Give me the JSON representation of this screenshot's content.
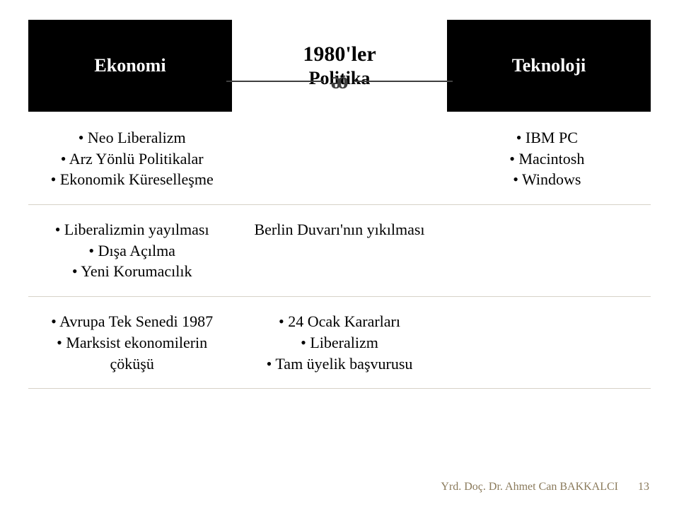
{
  "slide": {
    "decade": "1980'ler",
    "politika_label": "Politika",
    "ekonomi_label": "Ekonomi",
    "teknoloji_label": "Teknoloji",
    "flourish_glyph": "ᴔ"
  },
  "row1": {
    "left": [
      "Neo Liberalizm",
      "Arz Yönlü Politikalar",
      "Ekonomik Küreselleşme"
    ],
    "right": [
      "IBM PC",
      "Macintosh",
      "Windows"
    ]
  },
  "row2": {
    "left": [
      "Liberalizmin yayılması",
      "Dışa Açılma",
      "Yeni Korumacılık"
    ],
    "mid": "Berlin Duvarı'nın yıkılması"
  },
  "row3": {
    "left": [
      "Avrupa Tek Senedi 1987",
      "Marksist ekonomilerin çöküşü"
    ],
    "mid": [
      "24 Ocak Kararları",
      "Liberalizm",
      "Tam üyelik başvurusu"
    ]
  },
  "footer": {
    "author": "Yrd. Doç. Dr. Ahmet Can BAKKALCI",
    "page": "13"
  },
  "colors": {
    "header_bg": "#000000",
    "header_fg": "#ffffff",
    "text": "#000000",
    "separator": "#d7d2c8",
    "footer": "#8a7a5b",
    "flourish": "#3f3f3f",
    "background": "#ffffff"
  }
}
